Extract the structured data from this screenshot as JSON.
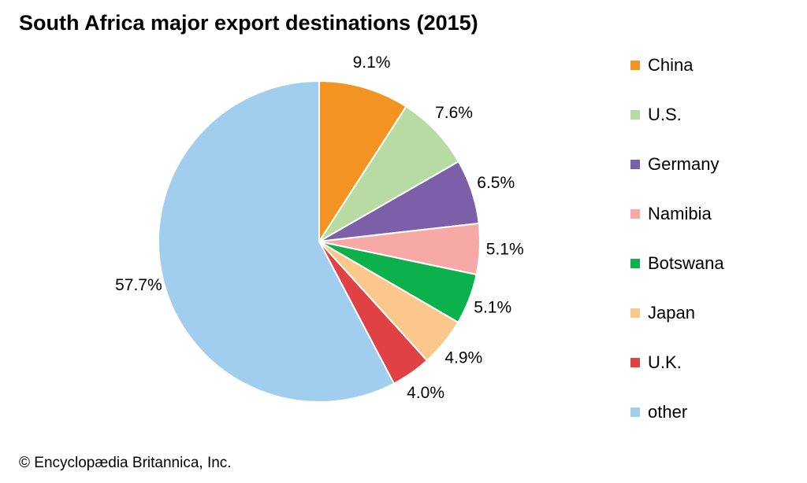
{
  "chart_data": {
    "type": "pie",
    "title": "South Africa major export destinations (2015)",
    "slices": [
      {
        "label": "China",
        "value": 9.1,
        "display": "9.1%",
        "color": "#F39322"
      },
      {
        "label": "U.S.",
        "value": 7.6,
        "display": "7.6%",
        "color": "#B8DBA4"
      },
      {
        "label": "Germany",
        "value": 6.5,
        "display": "6.5%",
        "color": "#7B5FA8"
      },
      {
        "label": "Namibia",
        "value": 5.1,
        "display": "5.1%",
        "color": "#F6A9A5"
      },
      {
        "label": "Botswana",
        "value": 5.1,
        "display": "5.1%",
        "color": "#0DB14B"
      },
      {
        "label": "Japan",
        "value": 4.9,
        "display": "4.9%",
        "color": "#FCC78A"
      },
      {
        "label": "U.K.",
        "value": 4.0,
        "display": "4.0%",
        "color": "#DF4144"
      },
      {
        "label": "other",
        "value": 57.7,
        "display": "57.7%",
        "color": "#A1CEEE"
      }
    ],
    "legend_position": "right"
  },
  "credit": "© Encyclopædia Britannica, Inc."
}
